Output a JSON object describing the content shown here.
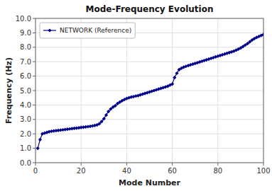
{
  "chart_data": {
    "type": "line",
    "title": "Mode-Frequency Evolution",
    "x_label": "Mode Number",
    "y_label": "Frequency (Hz)",
    "x": [
      1,
      2,
      3,
      4,
      5,
      6,
      7,
      8,
      9,
      10,
      11,
      12,
      13,
      14,
      15,
      16,
      17,
      18,
      19,
      20,
      21,
      22,
      23,
      24,
      25,
      26,
      27,
      28,
      29,
      30,
      31,
      32,
      33,
      34,
      35,
      36,
      37,
      38,
      39,
      40,
      41,
      42,
      43,
      44,
      45,
      46,
      47,
      48,
      49,
      50,
      51,
      52,
      53,
      54,
      55,
      56,
      57,
      58,
      59,
      60,
      61,
      62,
      63,
      64,
      65,
      66,
      67,
      68,
      69,
      70,
      71,
      72,
      73,
      74,
      75,
      76,
      77,
      78,
      79,
      80,
      81,
      82,
      83,
      84,
      85,
      86,
      87,
      88,
      89,
      90,
      91,
      92,
      93,
      94,
      95,
      96,
      97,
      98,
      99,
      100
    ],
    "series": [
      {
        "name": "NETWORK (Reference)",
        "color": "#00008B",
        "marker": "diamond",
        "values": [
          1.0,
          1.6,
          2.0,
          2.05,
          2.1,
          2.15,
          2.18,
          2.2,
          2.22,
          2.24,
          2.26,
          2.28,
          2.3,
          2.32,
          2.34,
          2.36,
          2.38,
          2.4,
          2.42,
          2.44,
          2.46,
          2.48,
          2.5,
          2.52,
          2.55,
          2.58,
          2.62,
          2.7,
          2.85,
          3.05,
          3.3,
          3.55,
          3.72,
          3.85,
          3.95,
          4.1,
          4.2,
          4.3,
          4.38,
          4.45,
          4.5,
          4.55,
          4.58,
          4.62,
          4.65,
          4.7,
          4.75,
          4.8,
          4.85,
          4.9,
          4.95,
          5.0,
          5.05,
          5.1,
          5.15,
          5.2,
          5.25,
          5.3,
          5.38,
          5.45,
          5.9,
          6.2,
          6.45,
          6.55,
          6.62,
          6.68,
          6.73,
          6.78,
          6.83,
          6.88,
          6.93,
          6.98,
          7.03,
          7.08,
          7.13,
          7.18,
          7.23,
          7.28,
          7.33,
          7.38,
          7.43,
          7.48,
          7.53,
          7.58,
          7.63,
          7.68,
          7.73,
          7.8,
          7.87,
          7.95,
          8.05,
          8.15,
          8.25,
          8.38,
          8.5,
          8.6,
          8.68,
          8.75,
          8.82,
          8.88
        ]
      }
    ],
    "xlim": [
      0,
      100
    ],
    "ylim": [
      0.0,
      10.0
    ],
    "xticks": [
      0,
      20,
      40,
      60,
      80,
      100
    ],
    "yticks": [
      {
        "value": 0.0,
        "label": "0.0"
      },
      {
        "value": 1.0,
        "label": "1.0"
      },
      {
        "value": 2.0,
        "label": "2.0"
      },
      {
        "value": 3.0,
        "label": "3.0"
      },
      {
        "value": 4.0,
        "label": "4.0"
      },
      {
        "value": 5.0,
        "label": "5.0"
      },
      {
        "value": 6.0,
        "label": "6.0"
      },
      {
        "value": 7.0,
        "label": "7.0"
      },
      {
        "value": 8.0,
        "label": "8.0"
      },
      {
        "value": 9.0,
        "label": "9.0"
      },
      {
        "value": 10.0,
        "label": "10.0"
      }
    ],
    "grid": true,
    "legend": "upper left"
  }
}
